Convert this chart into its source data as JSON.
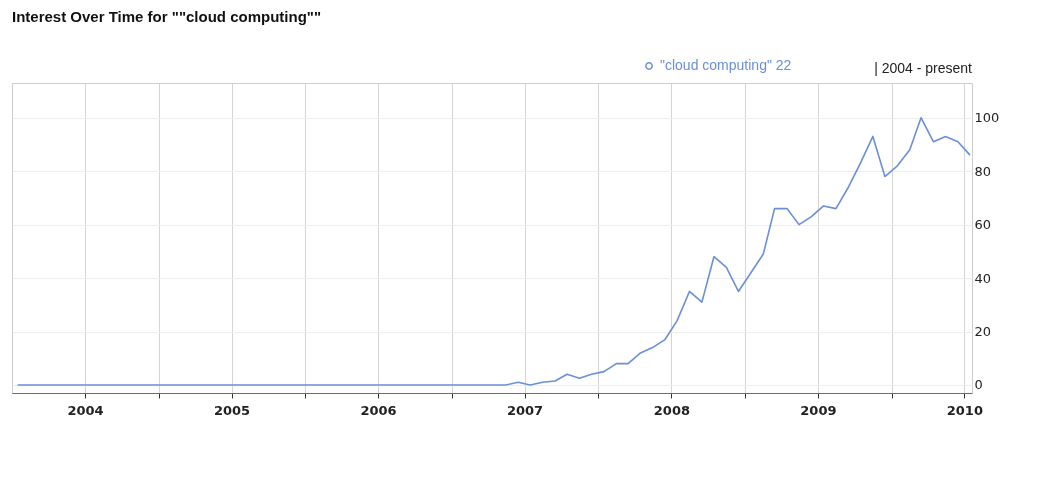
{
  "chart_data": {
    "type": "line",
    "title": "Interest Over Time for \"\"cloud computing\"\"",
    "annotations": [
      "| 2004 - present"
    ],
    "x": [
      "2004-01-15",
      "2007-01-15",
      "2007-02-15",
      "2007-03-15",
      "2007-04-15",
      "2007-05-15",
      "2007-06-15",
      "2007-07-15",
      "2007-08-15",
      "2007-09-15",
      "2007-10-15",
      "2007-11-15",
      "2007-12-15",
      "2008-01-15",
      "2008-02-15",
      "2008-03-15",
      "2008-04-15",
      "2008-05-15",
      "2008-06-15",
      "2008-07-15",
      "2008-08-15",
      "2008-09-15",
      "2008-10-15",
      "2008-11-15",
      "2008-12-15",
      "2009-01-15",
      "2009-02-15",
      "2009-03-15",
      "2009-04-15",
      "2009-05-15",
      "2009-06-15",
      "2009-07-15",
      "2009-08-15",
      "2009-09-15",
      "2009-10-15",
      "2009-11-15",
      "2009-12-15",
      "2010-01-15",
      "2010-02-15",
      "2010-03-15",
      "2010-04-15",
      "2010-05-15",
      "2010-06-15",
      "2010-07-15"
    ],
    "series": [
      {
        "name": "\"cloud computing\" 22",
        "color": "#6a8fd8",
        "values": [
          0,
          0,
          0,
          0,
          0,
          0,
          1,
          0,
          1,
          1.5,
          4,
          2.5,
          4,
          5,
          8,
          8,
          12,
          14,
          17,
          24,
          35,
          31,
          48,
          44,
          35,
          42,
          49,
          66,
          66,
          60,
          63,
          67,
          66,
          74,
          83,
          93,
          78,
          82,
          88,
          100,
          91,
          93,
          91,
          86
        ]
      }
    ],
    "xlim": [
      "2004-01-01",
      "2010-07-20"
    ],
    "xticks": [
      {
        "value": "2004-07-01",
        "label": "2004"
      },
      {
        "value": "2005-01-01",
        "label": null
      },
      {
        "value": "2005-07-01",
        "label": "2005"
      },
      {
        "value": "2006-01-01",
        "label": null
      },
      {
        "value": "2006-07-01",
        "label": "2006"
      },
      {
        "value": "2007-01-01",
        "label": null
      },
      {
        "value": "2007-07-01",
        "label": "2007"
      },
      {
        "value": "2008-01-01",
        "label": null
      },
      {
        "value": "2008-07-01",
        "label": "2008"
      },
      {
        "value": "2009-01-01",
        "label": null
      },
      {
        "value": "2009-07-01",
        "label": "2009"
      },
      {
        "value": "2010-01-01",
        "label": null
      },
      {
        "value": "2010-07-01",
        "label": "2010"
      }
    ],
    "ylim": [
      -3,
      113
    ],
    "yticks": [
      0,
      20,
      40,
      60,
      80,
      100
    ],
    "grid": true,
    "legend": "top right",
    "marker": "none",
    "line_style": "solid"
  }
}
